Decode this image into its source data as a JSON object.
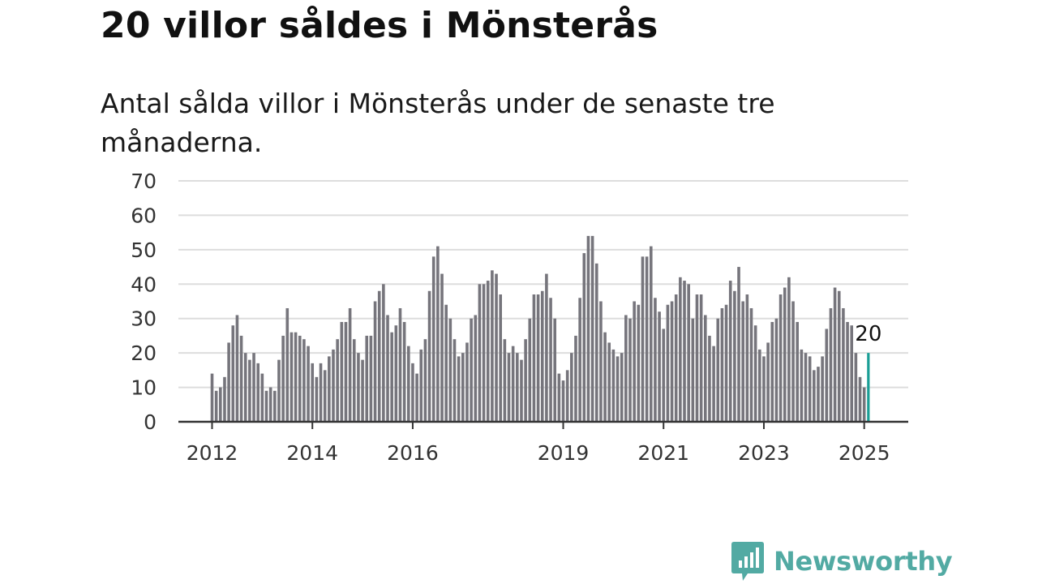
{
  "title": "20 villor såldes i Mönsterås",
  "subtitle": "Antal sålda villor i Mönsterås under de senaste tre månaderna.",
  "brand": {
    "name": "Newsworthy",
    "color": "#52aaa3"
  },
  "colors": {
    "bar": "#76757c",
    "highlight": "#1a9e96",
    "grid": "#dddddd",
    "axis": "#333333"
  },
  "chart_data": {
    "type": "bar",
    "title": "",
    "xlabel": "",
    "ylabel": "",
    "ylim": [
      0,
      70
    ],
    "yticks": [
      "0",
      "10",
      "20",
      "30",
      "40",
      "50",
      "60",
      "70"
    ],
    "xticks": [
      {
        "label": "2012",
        "index": 0
      },
      {
        "label": "2014",
        "index": 24
      },
      {
        "label": "2016",
        "index": 48
      },
      {
        "label": "2019",
        "index": 84
      },
      {
        "label": "2021",
        "index": 108
      },
      {
        "label": "2023",
        "index": 132
      },
      {
        "label": "2025",
        "index": 156
      }
    ],
    "grid": true,
    "last_label": "20",
    "values": [
      14,
      9,
      10,
      13,
      23,
      28,
      31,
      25,
      20,
      18,
      20,
      17,
      14,
      9,
      10,
      9,
      18,
      25,
      33,
      26,
      26,
      25,
      24,
      22,
      17,
      13,
      17,
      15,
      19,
      21,
      24,
      29,
      29,
      33,
      24,
      20,
      18,
      25,
      25,
      35,
      38,
      40,
      31,
      26,
      28,
      33,
      29,
      22,
      17,
      14,
      21,
      24,
      38,
      48,
      51,
      43,
      34,
      30,
      24,
      19,
      20,
      23,
      30,
      31,
      40,
      40,
      41,
      44,
      43,
      37,
      24,
      20,
      22,
      20,
      18,
      24,
      30,
      37,
      37,
      38,
      43,
      36,
      30,
      14,
      12,
      15,
      20,
      25,
      36,
      49,
      54,
      54,
      46,
      35,
      26,
      23,
      21,
      19,
      20,
      31,
      30,
      35,
      34,
      48,
      48,
      51,
      36,
      32,
      27,
      34,
      35,
      37,
      42,
      41,
      40,
      30,
      37,
      37,
      31,
      25,
      22,
      30,
      33,
      34,
      41,
      38,
      45,
      35,
      37,
      33,
      28,
      21,
      19,
      23,
      29,
      30,
      37,
      39,
      42,
      35,
      29,
      21,
      20,
      19,
      15,
      16,
      19,
      27,
      33,
      39,
      38,
      33,
      29,
      28,
      20,
      13,
      10,
      20
    ]
  }
}
